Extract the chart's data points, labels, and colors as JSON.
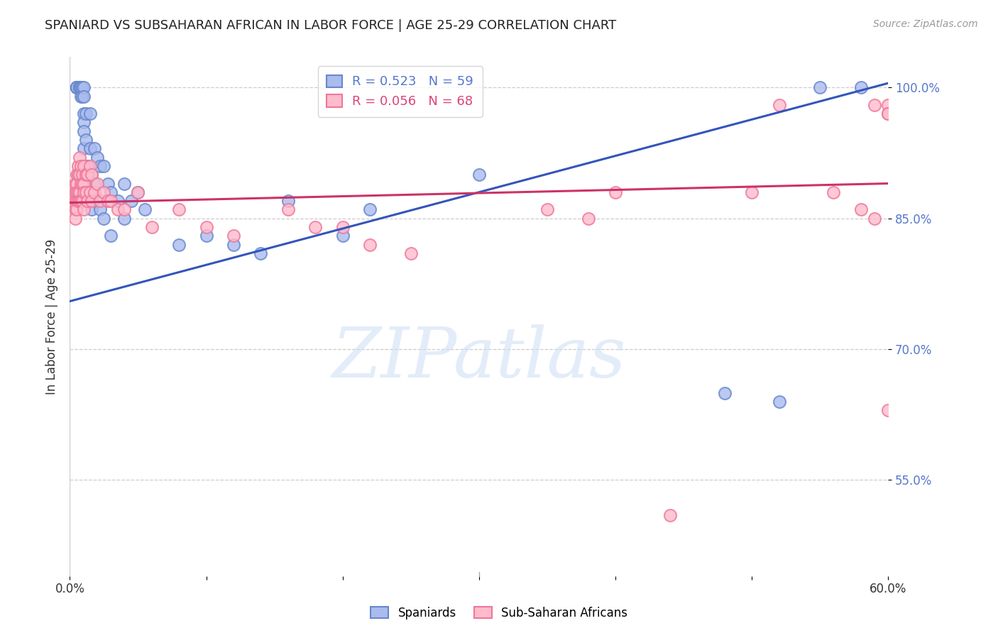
{
  "title": "SPANIARD VS SUBSAHARAN AFRICAN IN LABOR FORCE | AGE 25-29 CORRELATION CHART",
  "source": "Source: ZipAtlas.com",
  "ylabel": "In Labor Force | Age 25-29",
  "xmin": 0.0,
  "xmax": 0.6,
  "ymin": 0.44,
  "ymax": 1.035,
  "yticks": [
    0.55,
    0.7,
    0.85,
    1.0
  ],
  "ytick_labels": [
    "55.0%",
    "70.0%",
    "85.0%",
    "100.0%"
  ],
  "xticks": [
    0.0,
    0.1,
    0.2,
    0.3,
    0.4,
    0.5,
    0.6
  ],
  "xtick_labels": [
    "0.0%",
    "",
    "",
    "",
    "",
    "",
    "60.0%"
  ],
  "grid_color": "#cccccc",
  "background_color": "#ffffff",
  "blue_face_color": "#aabbee",
  "blue_edge_color": "#6688cc",
  "pink_face_color": "#ffbbcc",
  "pink_edge_color": "#ee7799",
  "blue_line_color": "#3355bb",
  "pink_line_color": "#cc3366",
  "legend_R_blue": "R = 0.523",
  "legend_N_blue": "N = 59",
  "legend_R_pink": "R = 0.056",
  "legend_N_pink": "N = 68",
  "watermark": "ZIPatlas",
  "blue_line_x0": 0.0,
  "blue_line_y0": 0.755,
  "blue_line_x1": 0.6,
  "blue_line_y1": 1.005,
  "pink_line_x0": 0.0,
  "pink_line_y0": 0.868,
  "pink_line_x1": 0.6,
  "pink_line_y1": 0.89,
  "blue_scatter_x": [
    0.005,
    0.005,
    0.005,
    0.005,
    0.005,
    0.005,
    0.007,
    0.007,
    0.007,
    0.008,
    0.008,
    0.008,
    0.009,
    0.009,
    0.01,
    0.01,
    0.01,
    0.01,
    0.01,
    0.01,
    0.01,
    0.012,
    0.012,
    0.013,
    0.013,
    0.015,
    0.015,
    0.016,
    0.016,
    0.016,
    0.018,
    0.018,
    0.02,
    0.02,
    0.022,
    0.022,
    0.025,
    0.025,
    0.028,
    0.03,
    0.03,
    0.035,
    0.04,
    0.04,
    0.045,
    0.05,
    0.055,
    0.08,
    0.1,
    0.12,
    0.14,
    0.16,
    0.2,
    0.22,
    0.3,
    0.48,
    0.52,
    0.55,
    0.58
  ],
  "blue_scatter_y": [
    1.0,
    1.0,
    1.0,
    1.0,
    1.0,
    1.0,
    1.0,
    1.0,
    1.0,
    1.0,
    1.0,
    0.99,
    1.0,
    0.99,
    1.0,
    0.99,
    0.97,
    0.96,
    0.95,
    0.93,
    0.91,
    0.97,
    0.94,
    0.91,
    0.88,
    0.97,
    0.93,
    0.9,
    0.88,
    0.86,
    0.93,
    0.89,
    0.92,
    0.87,
    0.91,
    0.86,
    0.91,
    0.85,
    0.89,
    0.88,
    0.83,
    0.87,
    0.89,
    0.85,
    0.87,
    0.88,
    0.86,
    0.82,
    0.83,
    0.82,
    0.81,
    0.87,
    0.83,
    0.86,
    0.9,
    0.65,
    0.64,
    1.0,
    1.0
  ],
  "pink_scatter_x": [
    0.004,
    0.004,
    0.004,
    0.004,
    0.004,
    0.005,
    0.005,
    0.005,
    0.005,
    0.005,
    0.006,
    0.006,
    0.006,
    0.006,
    0.007,
    0.007,
    0.007,
    0.007,
    0.008,
    0.008,
    0.008,
    0.009,
    0.009,
    0.009,
    0.01,
    0.01,
    0.01,
    0.01,
    0.012,
    0.012,
    0.013,
    0.013,
    0.015,
    0.015,
    0.016,
    0.016,
    0.018,
    0.02,
    0.022,
    0.025,
    0.028,
    0.03,
    0.035,
    0.04,
    0.05,
    0.06,
    0.08,
    0.1,
    0.12,
    0.16,
    0.18,
    0.2,
    0.22,
    0.25,
    0.35,
    0.38,
    0.4,
    0.44,
    0.5,
    0.52,
    0.56,
    0.58,
    0.59,
    0.59,
    0.6,
    0.6,
    0.6,
    0.6
  ],
  "pink_scatter_y": [
    0.89,
    0.88,
    0.87,
    0.86,
    0.85,
    0.9,
    0.89,
    0.88,
    0.87,
    0.86,
    0.91,
    0.9,
    0.88,
    0.87,
    0.92,
    0.9,
    0.88,
    0.87,
    0.91,
    0.89,
    0.87,
    0.9,
    0.89,
    0.87,
    0.91,
    0.89,
    0.88,
    0.86,
    0.9,
    0.88,
    0.9,
    0.87,
    0.91,
    0.88,
    0.9,
    0.87,
    0.88,
    0.89,
    0.87,
    0.88,
    0.87,
    0.87,
    0.86,
    0.86,
    0.88,
    0.84,
    0.86,
    0.84,
    0.83,
    0.86,
    0.84,
    0.84,
    0.82,
    0.81,
    0.86,
    0.85,
    0.88,
    0.51,
    0.88,
    0.98,
    0.88,
    0.86,
    0.85,
    0.98,
    0.98,
    0.97,
    0.97,
    0.63
  ]
}
